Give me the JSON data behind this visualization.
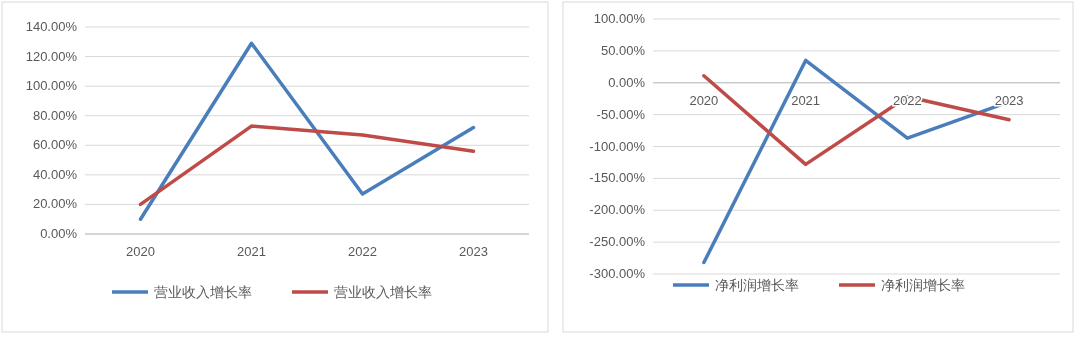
{
  "chart_data": [
    {
      "type": "line",
      "categories": [
        "2020",
        "2021",
        "2022",
        "2023"
      ],
      "series": [
        {
          "name": "营业收入增长率",
          "color": "#4a7ebb",
          "values": [
            10,
            129,
            27,
            72
          ]
        },
        {
          "name": "营业收入增长率",
          "color": "#be4b48",
          "values": [
            20,
            73,
            67,
            56
          ]
        }
      ],
      "ylim": [
        0,
        140
      ],
      "yticks": [
        {
          "value": 0,
          "label": "0.00%"
        },
        {
          "value": 20,
          "label": "20.00%"
        },
        {
          "value": 40,
          "label": "40.00%"
        },
        {
          "value": 60,
          "label": "60.00%"
        },
        {
          "value": 80,
          "label": "80.00%"
        },
        {
          "value": 100,
          "label": "100.00%"
        },
        {
          "value": 120,
          "label": "120.00%"
        },
        {
          "value": 140,
          "label": "140.00%"
        }
      ],
      "grid": "y",
      "legend": "bottom",
      "marker": "none",
      "line_style": "solid"
    },
    {
      "type": "line",
      "categories": [
        "2020",
        "2021",
        "2022",
        "2023"
      ],
      "series": [
        {
          "name": "净利润增长率",
          "color": "#4a7ebb",
          "values": [
            -282,
            35,
            -87,
            -30
          ]
        },
        {
          "name": "净利润增长率",
          "color": "#be4b48",
          "values": [
            11,
            -128,
            -22,
            -58
          ]
        }
      ],
      "ylim": [
        -300,
        100
      ],
      "yticks": [
        {
          "value": -300,
          "label": "-300.00%"
        },
        {
          "value": -250,
          "label": "-250.00%"
        },
        {
          "value": -200,
          "label": "-200.00%"
        },
        {
          "value": -150,
          "label": "-150.00%"
        },
        {
          "value": -100,
          "label": "-100.00%"
        },
        {
          "value": -50,
          "label": "-50.00%"
        },
        {
          "value": 0,
          "label": "0.00%"
        },
        {
          "value": 50,
          "label": "50.00%"
        },
        {
          "value": 100,
          "label": "100.00%"
        }
      ],
      "grid": "y",
      "legend": "bottom",
      "marker": "none",
      "line_style": "solid"
    }
  ]
}
